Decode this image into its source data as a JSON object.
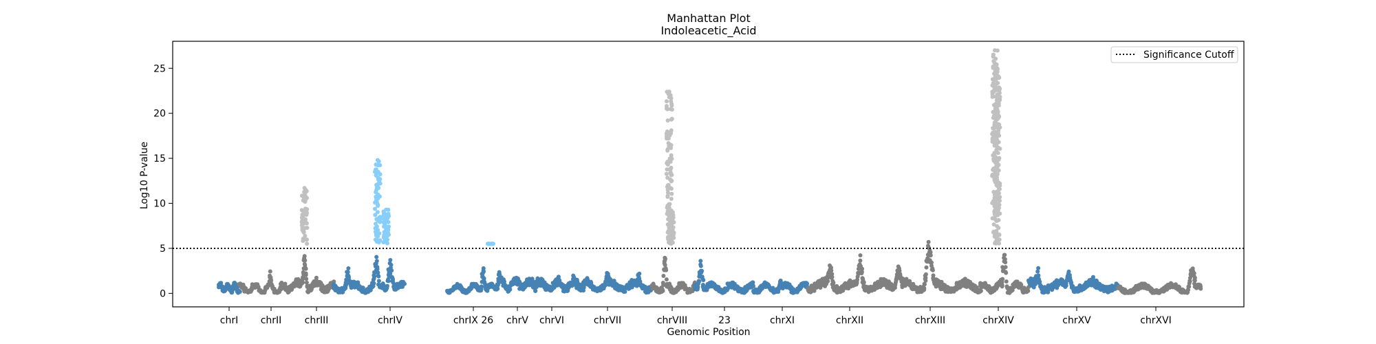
{
  "chart_data": {
    "type": "scatter",
    "title": "Manhattan Plot",
    "subtitle": "Indoleacetic_Acid",
    "xlabel": "Genomic Position",
    "ylabel": "Log10 P-value",
    "ylim": [
      -1.5,
      28
    ],
    "y_ticks": [
      0,
      5,
      10,
      15,
      20,
      25
    ],
    "grid": false,
    "legend": {
      "placement": "top-right",
      "entries": [
        "Significance Cutoff"
      ]
    },
    "significance_cutoff": 5,
    "colors": {
      "steelblue": "#4682b4",
      "gray": "#808080",
      "lightgray": "#c0c0c0",
      "lightblue": "#87cefa",
      "cutoff_line": "#000000"
    },
    "chromosomes": [
      {
        "label": "chrI",
        "color": "steelblue",
        "baseline": 0.6,
        "peaks": []
      },
      {
        "label": "chrII",
        "color": "gray",
        "baseline": 0.5,
        "peaks": [
          {
            "pos": 0.75,
            "height": 2.6
          }
        ]
      },
      {
        "label": "chrIII",
        "color": "gray",
        "baseline": 0.8,
        "peaks": [
          {
            "pos": 0.45,
            "height": 4.8
          },
          {
            "pos": 0.45,
            "height": 11.7,
            "sig": true
          }
        ]
      },
      {
        "label": "chrIV",
        "color": "steelblue",
        "baseline": 0.7,
        "peaks": [
          {
            "pos": 0.2,
            "height": 2.6
          },
          {
            "pos": 0.6,
            "height": 4.5
          },
          {
            "pos": 0.62,
            "height": 14.8,
            "sig": true
          },
          {
            "pos": 0.74,
            "height": 9.3,
            "sig": true
          },
          {
            "pos": 0.8,
            "height": 3.9
          }
        ]
      },
      {
        "label": "chrIX 26",
        "color": "steelblue",
        "baseline": 0.5,
        "peaks": [
          {
            "pos": 0.75,
            "height": 2.8
          },
          {
            "pos": 0.9,
            "height": 5.5,
            "sig": true
          }
        ]
      },
      {
        "label": "chrV",
        "color": "steelblue",
        "baseline": 1.0,
        "peaks": [
          {
            "pos": 0.1,
            "height": 2.8
          }
        ]
      },
      {
        "label": "chrVI",
        "color": "steelblue",
        "baseline": 0.9,
        "peaks": [
          {
            "pos": 0.8,
            "height": 1.9
          }
        ]
      },
      {
        "label": "chrVII",
        "color": "steelblue",
        "baseline": 0.8,
        "peaks": [
          {
            "pos": 0.35,
            "height": 2.6
          },
          {
            "pos": 0.8,
            "height": 2.2
          }
        ]
      },
      {
        "label": "chrVIII",
        "color": "gray",
        "baseline": 0.6,
        "peaks": [
          {
            "pos": 0.3,
            "height": 5.0
          },
          {
            "pos": 0.4,
            "height": 22.4,
            "sig": true
          },
          {
            "pos": 0.45,
            "height": 9.2,
            "sig": true
          }
        ]
      },
      {
        "label": "23",
        "color": "steelblue",
        "baseline": 0.6,
        "peaks": [
          {
            "pos": 0.1,
            "height": 3.7
          }
        ]
      },
      {
        "label": "chrXI",
        "color": "steelblue",
        "baseline": 0.6,
        "peaks": [
          {
            "pos": 0.5,
            "height": 1.6
          }
        ]
      },
      {
        "label": "chrXII",
        "color": "gray",
        "baseline": 0.8,
        "peaks": [
          {
            "pos": 0.25,
            "height": 3.5
          },
          {
            "pos": 0.6,
            "height": 3.9
          }
        ]
      },
      {
        "label": "chrXIII",
        "color": "gray",
        "baseline": 0.8,
        "peaks": [
          {
            "pos": 0.05,
            "height": 3.6
          },
          {
            "pos": 0.4,
            "height": 6.1
          },
          {
            "pos": 0.42,
            "height": 4.8
          }
        ]
      },
      {
        "label": "chrXIV",
        "color": "gray",
        "baseline": 0.7,
        "peaks": [
          {
            "pos": 0.3,
            "height": 27.0,
            "sig": true
          },
          {
            "pos": 0.35,
            "height": 25.0,
            "sig": true
          },
          {
            "pos": 0.5,
            "height": 5.4
          }
        ]
      },
      {
        "label": "chrXV",
        "color": "steelblue",
        "baseline": 0.8,
        "peaks": [
          {
            "pos": 0.1,
            "height": 2.5
          },
          {
            "pos": 0.45,
            "height": 2.4
          }
        ]
      },
      {
        "label": "chrXVI",
        "color": "gray",
        "baseline": 0.5,
        "peaks": [
          {
            "pos": 0.9,
            "height": 3.2
          }
        ]
      }
    ]
  }
}
